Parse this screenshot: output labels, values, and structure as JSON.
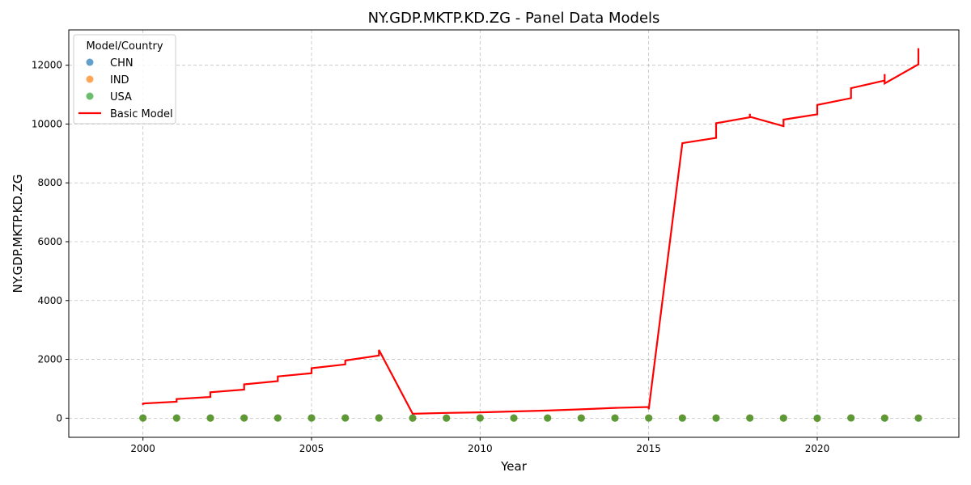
{
  "chart_data": {
    "type": "line",
    "title": "NY.GDP.MKTP.KD.ZG - Panel Data Models",
    "xlabel": "Year",
    "ylabel": "NY.GDP.MKTP.KD.ZG",
    "xlim": [
      1997.8,
      2024.2
    ],
    "ylim": [
      -650,
      13200
    ],
    "x_ticks": [
      2000,
      2005,
      2010,
      2015,
      2020
    ],
    "y_ticks": [
      0,
      2000,
      4000,
      6000,
      8000,
      10000,
      12000
    ],
    "grid": true,
    "legend_title": "Model/Country",
    "legend_location": "top-left",
    "scatter_series": [
      {
        "name": "CHN",
        "color": "#1f77b4",
        "x": [
          2000,
          2001,
          2002,
          2003,
          2004,
          2005,
          2006,
          2007,
          2008,
          2009,
          2010,
          2011,
          2012,
          2013,
          2014,
          2015,
          2016,
          2017,
          2018,
          2019,
          2020,
          2021,
          2022,
          2023
        ],
        "y": [
          8.5,
          8.3,
          9.1,
          10.0,
          10.1,
          11.4,
          12.7,
          14.2,
          9.7,
          9.4,
          10.6,
          9.6,
          7.9,
          7.8,
          7.4,
          7.0,
          6.8,
          6.9,
          6.7,
          6.0,
          2.2,
          8.4,
          3.0,
          5.2
        ]
      },
      {
        "name": "IND",
        "color": "#ff7f0e",
        "x": [
          2000,
          2001,
          2002,
          2003,
          2004,
          2005,
          2006,
          2007,
          2008,
          2009,
          2010,
          2011,
          2012,
          2013,
          2014,
          2015,
          2016,
          2017,
          2018,
          2019,
          2020,
          2021,
          2022,
          2023
        ],
        "y": [
          3.8,
          4.8,
          3.8,
          7.9,
          7.9,
          7.9,
          8.1,
          7.7,
          3.1,
          7.9,
          8.5,
          5.2,
          5.5,
          6.4,
          7.4,
          8.0,
          8.3,
          6.8,
          6.5,
          3.9,
          -5.8,
          9.7,
          7.0,
          7.6
        ]
      },
      {
        "name": "USA",
        "color": "#2ca02c",
        "x": [
          2000,
          2001,
          2002,
          2003,
          2004,
          2005,
          2006,
          2007,
          2008,
          2009,
          2010,
          2011,
          2012,
          2013,
          2014,
          2015,
          2016,
          2017,
          2018,
          2019,
          2020,
          2021,
          2022,
          2023
        ],
        "y": [
          4.1,
          1.0,
          1.7,
          2.8,
          3.9,
          3.5,
          2.8,
          2.0,
          0.1,
          -2.6,
          2.7,
          1.6,
          2.3,
          2.1,
          2.5,
          2.9,
          1.8,
          2.5,
          3.0,
          2.3,
          -2.2,
          5.8,
          1.9,
          2.5
        ]
      }
    ],
    "line_series": [
      {
        "name": "Basic Model",
        "color": "#ff0000",
        "points": [
          [
            2000,
            450
          ],
          [
            2000,
            500
          ],
          [
            2001,
            560
          ],
          [
            2001,
            650
          ],
          [
            2002,
            720
          ],
          [
            2002,
            880
          ],
          [
            2003,
            970
          ],
          [
            2003,
            1150
          ],
          [
            2004,
            1260
          ],
          [
            2004,
            1420
          ],
          [
            2005,
            1530
          ],
          [
            2005,
            1700
          ],
          [
            2006,
            1830
          ],
          [
            2006,
            1960
          ],
          [
            2007,
            2130
          ],
          [
            2007,
            2320
          ],
          [
            2008,
            150
          ],
          [
            2009,
            180
          ],
          [
            2010,
            200
          ],
          [
            2011,
            230
          ],
          [
            2012,
            260
          ],
          [
            2013,
            300
          ],
          [
            2014,
            350
          ],
          [
            2015,
            380
          ],
          [
            2015,
            300
          ],
          [
            2016,
            9350
          ],
          [
            2017,
            9530
          ],
          [
            2017,
            10030
          ],
          [
            2018,
            10230
          ],
          [
            2018,
            10350
          ],
          [
            2018,
            10250
          ],
          [
            2019,
            9930
          ],
          [
            2019,
            10150
          ],
          [
            2020,
            10330
          ],
          [
            2020,
            10650
          ],
          [
            2021,
            10880
          ],
          [
            2021,
            11220
          ],
          [
            2022,
            11480
          ],
          [
            2022,
            11700
          ],
          [
            2022,
            11380
          ],
          [
            2023,
            12030
          ],
          [
            2023,
            12580
          ]
        ]
      }
    ]
  }
}
